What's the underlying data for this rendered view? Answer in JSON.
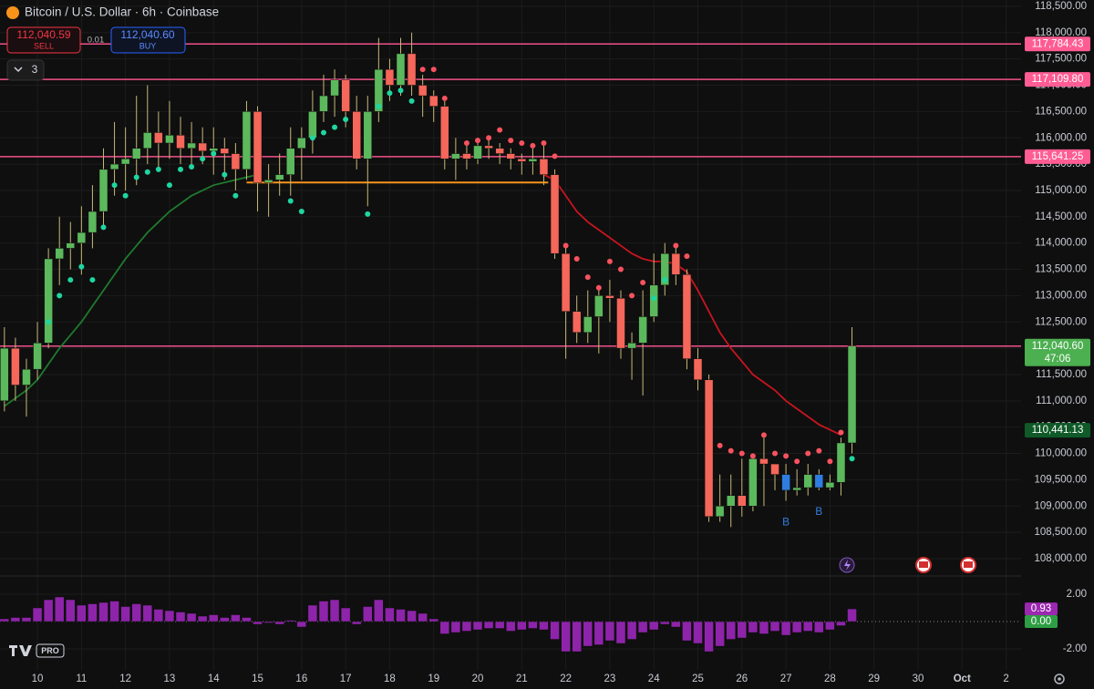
{
  "header": {
    "title": "Bitcoin / U.S. Dollar · 6h · Coinbase",
    "sell_price": "112,040.59",
    "sell_label": "SELL",
    "spread": "0.01",
    "buy_price": "112,040.60",
    "buy_label": "BUY",
    "indicators_count": "3",
    "logo_badge": "PRO"
  },
  "chart_data": [
    {
      "type": "candlestick",
      "grid": true,
      "x": [
        9.25,
        9.5,
        9.75,
        10,
        10.25,
        10.5,
        10.75,
        11,
        11.25,
        11.5,
        11.75,
        12,
        12.25,
        12.5,
        12.75,
        13,
        13.25,
        13.5,
        13.75,
        14,
        14.25,
        14.5,
        14.75,
        15,
        15.25,
        15.5,
        15.75,
        16,
        16.25,
        16.5,
        16.75,
        17,
        17.25,
        17.5,
        17.75,
        18,
        18.25,
        18.5,
        18.75,
        19,
        19.25,
        19.5,
        19.75,
        20,
        20.25,
        20.5,
        20.75,
        21,
        21.25,
        21.5,
        21.75,
        22,
        22.25,
        22.5,
        22.75,
        23,
        23.25,
        23.5,
        23.75,
        24,
        24.25,
        24.5,
        24.75,
        25,
        25.25,
        25.5,
        25.75,
        26,
        26.25,
        26.5,
        26.75,
        27,
        27.25,
        27.5,
        27.75,
        28,
        28.25,
        28.5
      ],
      "open": [
        111000,
        112000,
        111300,
        111600,
        112100,
        113700,
        113900,
        114000,
        114200,
        114600,
        115400,
        115500,
        115600,
        115800,
        116100,
        115900,
        116050,
        115800,
        115900,
        115750,
        115800,
        115700,
        115400,
        116500,
        115150,
        115200,
        115300,
        115800,
        116000,
        116500,
        116800,
        117100,
        116500,
        115600,
        116500,
        117300,
        117000,
        117600,
        117000,
        116800,
        116600,
        115600,
        115700,
        115600,
        115850,
        115800,
        115700,
        115600,
        115550,
        115600,
        115300,
        113800,
        112700,
        112300,
        112600,
        113000,
        112950,
        112000,
        112100,
        112600,
        113200,
        113800,
        113400,
        111800,
        111400,
        108800,
        109000,
        109200,
        109000,
        109900,
        109800,
        109600,
        109300,
        109350,
        109600,
        109350,
        109450,
        110200
      ],
      "high": [
        112400,
        112200,
        111800,
        112500,
        113900,
        114500,
        114400,
        114700,
        115100,
        115800,
        116300,
        116200,
        116800,
        117000,
        116500,
        116700,
        116400,
        116300,
        116200,
        116200,
        116000,
        115900,
        116700,
        116600,
        115500,
        115700,
        116200,
        116200,
        116900,
        117200,
        117300,
        117200,
        116800,
        116800,
        117900,
        117500,
        117900,
        118000,
        117200,
        116900,
        116700,
        116000,
        115900,
        116000,
        116000,
        115900,
        115800,
        115700,
        115800,
        115900,
        115400,
        114000,
        113000,
        113100,
        113200,
        113300,
        113100,
        112300,
        113100,
        113800,
        114000,
        113950,
        113500,
        112000,
        111500,
        109600,
        109600,
        109900,
        110000,
        110400,
        109800,
        109800,
        109700,
        109800,
        109700,
        109600,
        110300,
        112400
      ],
      "low": [
        110800,
        111000,
        110700,
        111400,
        112000,
        113200,
        113500,
        113400,
        113900,
        114300,
        114900,
        115000,
        115100,
        115500,
        115400,
        115600,
        115500,
        115400,
        115500,
        115300,
        115200,
        115000,
        115200,
        114600,
        114500,
        114900,
        114900,
        115200,
        115700,
        116300,
        116400,
        116200,
        115400,
        114700,
        116300,
        116700,
        116800,
        116800,
        116400,
        116300,
        115400,
        115200,
        115400,
        115500,
        115600,
        115500,
        115400,
        115300,
        115300,
        115100,
        113700,
        111800,
        112100,
        112100,
        111900,
        112500,
        111800,
        111400,
        111100,
        112500,
        113000,
        113200,
        111600,
        111200,
        108700,
        108700,
        108600,
        108800,
        108900,
        109000,
        109300,
        109100,
        109200,
        109200,
        109300,
        109300,
        109200,
        110000
      ],
      "close": [
        112000,
        111300,
        111600,
        112100,
        113700,
        113900,
        114000,
        114200,
        114600,
        115400,
        115500,
        115600,
        115800,
        116100,
        115900,
        116050,
        115800,
        115900,
        115750,
        115800,
        115700,
        115400,
        116500,
        115150,
        115200,
        115300,
        115800,
        116000,
        116500,
        116800,
        117100,
        116500,
        115600,
        116500,
        117300,
        117000,
        117600,
        117000,
        116800,
        116600,
        115600,
        115700,
        115600,
        115850,
        115800,
        115700,
        115600,
        115550,
        115600,
        115300,
        113800,
        112700,
        112300,
        112600,
        113000,
        112950,
        112000,
        112100,
        112600,
        113200,
        113800,
        113400,
        111800,
        111400,
        108800,
        109000,
        109200,
        109000,
        109900,
        109800,
        109600,
        109300,
        109350,
        109600,
        109350,
        109450,
        110200,
        112040.6
      ],
      "colors": {
        "up": "#5cb85c",
        "down": "#f4675a",
        "wick": "#c8b878",
        "signal": "#2f7de1"
      },
      "sar": {
        "colors": {
          "below": "#1fd6a0",
          "above": "#f7525f"
        },
        "values": [
          null,
          null,
          null,
          null,
          112500,
          113000,
          113300,
          113550,
          113300,
          114300,
          115100,
          114900,
          115250,
          115350,
          115400,
          115100,
          115400,
          115450,
          115600,
          115700,
          115300,
          114900,
          null,
          null,
          null,
          null,
          114800,
          114600,
          116000,
          116100,
          116200,
          116350,
          null,
          114550,
          116600,
          116850,
          116900,
          116700,
          117300,
          117300,
          116750,
          null,
          115900,
          115950,
          116000,
          116150,
          115950,
          115900,
          115850,
          115900,
          115650,
          113950,
          113700,
          113350,
          113150,
          113650,
          113500,
          113000,
          113250,
          112950,
          113300,
          113950,
          113750,
          null,
          null,
          110150,
          110050,
          110000,
          109950,
          110350,
          110000,
          109950,
          109850,
          110000,
          110050,
          109850,
          110400,
          109900
        ]
      },
      "lines": [
        {
          "color": "#1f7a2e",
          "values": [
            110900,
            111050,
            111200,
            111400,
            111700,
            112000,
            112250,
            112500,
            112800,
            113100,
            113400,
            113700,
            113950,
            114200,
            114400,
            114600,
            114750,
            114900,
            115000,
            115100,
            115150,
            115200,
            115250,
            115300,
            null,
            null,
            null,
            null,
            null,
            null,
            null,
            null,
            null,
            null,
            null,
            null,
            null,
            null,
            null,
            null,
            null,
            null,
            null,
            null,
            null,
            null,
            null,
            null,
            null,
            null,
            null,
            null,
            null,
            null,
            null,
            null,
            null,
            null,
            null,
            null,
            null,
            null,
            null,
            null,
            null,
            null,
            null,
            null,
            null,
            null,
            null,
            null,
            null,
            null,
            null,
            null,
            null,
            null
          ]
        },
        {
          "color": "#c8151f",
          "values": [
            null,
            null,
            null,
            null,
            null,
            null,
            null,
            null,
            null,
            null,
            null,
            null,
            null,
            null,
            null,
            null,
            null,
            null,
            null,
            null,
            null,
            null,
            null,
            null,
            null,
            null,
            null,
            null,
            null,
            null,
            null,
            null,
            null,
            null,
            null,
            null,
            null,
            null,
            null,
            null,
            null,
            null,
            null,
            null,
            null,
            null,
            null,
            null,
            null,
            115300,
            115200,
            114900,
            114600,
            114400,
            114250,
            114100,
            113950,
            113800,
            113700,
            113650,
            113650,
            113600,
            113450,
            113100,
            112700,
            112300,
            112000,
            111750,
            111500,
            111350,
            111200,
            111000,
            110850,
            110700,
            110550,
            110450,
            110350,
            null
          ]
        }
      ],
      "levels": [
        {
          "value": 117784.43,
          "label": "117,784.43",
          "color": "#f0508a",
          "badge": "#ff5c93",
          "show_line": true
        },
        {
          "value": 117109.8,
          "label": "117,109.80",
          "color": "#f0508a",
          "badge": "#ff5c93",
          "show_line": true
        },
        {
          "value": 115641.25,
          "label": "115,641.25",
          "color": "#f0508a",
          "badge": "#ff5c93",
          "show_line": true
        },
        {
          "value": 112040.6,
          "label": "112,040.60",
          "color": "#f0508a",
          "badge": "#4caf50",
          "show_line": true,
          "countdown": "47:06"
        },
        {
          "value": 110441.13,
          "label": "110,441.13",
          "color": "#0f5a28",
          "badge": "#0f5a28",
          "show_line": false
        }
      ],
      "support": {
        "value": 115150,
        "x": [
          14.75,
          21.6
        ],
        "color": "#f7931a"
      },
      "signals": [
        {
          "x": 27,
          "label": "B"
        },
        {
          "x": 27.75,
          "label": "B"
        }
      ],
      "xlim": [
        9.15,
        32.34
      ],
      "ylim": [
        107705,
        118620
      ],
      "xticks": [
        10,
        11,
        12,
        13,
        14,
        15,
        16,
        17,
        18,
        19,
        20,
        21,
        22,
        23,
        24,
        25,
        26,
        27,
        28,
        29,
        30,
        {
          "value": 31,
          "label": "Oct"
        },
        {
          "value": 32,
          "label": "2"
        }
      ],
      "yticks": [
        {
          "value": 108000,
          "label": "108,000.00"
        },
        {
          "value": 108500,
          "label": "108,500.00"
        },
        {
          "value": 109000,
          "label": "109,000.00"
        },
        {
          "value": 109500,
          "label": "109,500.00"
        },
        {
          "value": 110000,
          "label": "110,000.00"
        },
        {
          "value": 110500,
          "label": "110,500.00"
        },
        {
          "value": 111000,
          "label": "111,000.00"
        },
        {
          "value": 111500,
          "label": "111,500.00"
        },
        {
          "value": 112000,
          "label": "112,000.00"
        },
        {
          "value": 112500,
          "label": "112,500.00"
        },
        {
          "value": 113000,
          "label": "113,000.00"
        },
        {
          "value": 113500,
          "label": "113,500.00"
        },
        {
          "value": 114000,
          "label": "114,000.00"
        },
        {
          "value": 114500,
          "label": "114,500.00"
        },
        {
          "value": 115000,
          "label": "115,000.00"
        },
        {
          "value": 115500,
          "label": "115,500.00"
        },
        {
          "value": 116000,
          "label": "116,000.00"
        },
        {
          "value": 116500,
          "label": "116,500.00"
        },
        {
          "value": 117000,
          "label": "117,000.00"
        },
        {
          "value": 117500,
          "label": "117,500.00"
        },
        {
          "value": 118000,
          "label": "118,000.00"
        },
        {
          "value": 118500,
          "label": "118,500.00"
        }
      ]
    },
    {
      "type": "bar",
      "color": "#8e24aa",
      "x": [
        9.25,
        9.5,
        9.75,
        10,
        10.25,
        10.5,
        10.75,
        11,
        11.25,
        11.5,
        11.75,
        12,
        12.25,
        12.5,
        12.75,
        13,
        13.25,
        13.5,
        13.75,
        14,
        14.25,
        14.5,
        14.75,
        15,
        15.25,
        15.5,
        15.75,
        16,
        16.25,
        16.5,
        16.75,
        17,
        17.25,
        17.5,
        17.75,
        18,
        18.25,
        18.5,
        18.75,
        19,
        19.25,
        19.5,
        19.75,
        20,
        20.25,
        20.5,
        20.75,
        21,
        21.25,
        21.5,
        21.75,
        22,
        22.25,
        22.5,
        22.75,
        23,
        23.25,
        23.5,
        23.75,
        24,
        24.25,
        24.5,
        24.75,
        25,
        25.25,
        25.5,
        25.75,
        26,
        26.25,
        26.5,
        26.75,
        27,
        27.25,
        27.5,
        27.75,
        28,
        28.25,
        28.5
      ],
      "values": [
        0.2,
        0.3,
        0.3,
        1.0,
        1.6,
        1.8,
        1.6,
        1.2,
        1.3,
        1.4,
        1.5,
        1.1,
        1.3,
        1.2,
        0.9,
        0.8,
        0.7,
        0.6,
        0.4,
        0.5,
        0.3,
        0.5,
        0.3,
        -0.2,
        -0.1,
        -0.2,
        0.1,
        -0.4,
        1.2,
        1.5,
        1.6,
        1.0,
        -0.2,
        1.1,
        1.6,
        1.0,
        0.9,
        0.8,
        0.6,
        0.2,
        -0.9,
        -0.8,
        -0.7,
        -0.6,
        -0.5,
        -0.5,
        -0.7,
        -0.6,
        -0.5,
        -0.6,
        -1.3,
        -2.2,
        -2.2,
        -1.8,
        -1.7,
        -1.4,
        -1.6,
        -1.3,
        -0.8,
        -0.6,
        -0.2,
        -0.4,
        -1.4,
        -1.6,
        -2.2,
        -1.8,
        -1.3,
        -1.2,
        -0.8,
        -0.9,
        -0.7,
        -1.0,
        -0.8,
        -0.7,
        -0.8,
        -0.6,
        -0.3,
        0.93
      ],
      "ylim": [
        -3.53,
        3.2
      ],
      "yticks": [
        {
          "value": 2,
          "label": "2.00"
        },
        {
          "value": -2,
          "label": "-2.00"
        }
      ],
      "badges": [
        {
          "value": 0.93,
          "label": "0.93",
          "color": "#9c27b0"
        },
        {
          "value": 0,
          "label": "0.00",
          "color": "#2e9e44"
        }
      ]
    }
  ]
}
